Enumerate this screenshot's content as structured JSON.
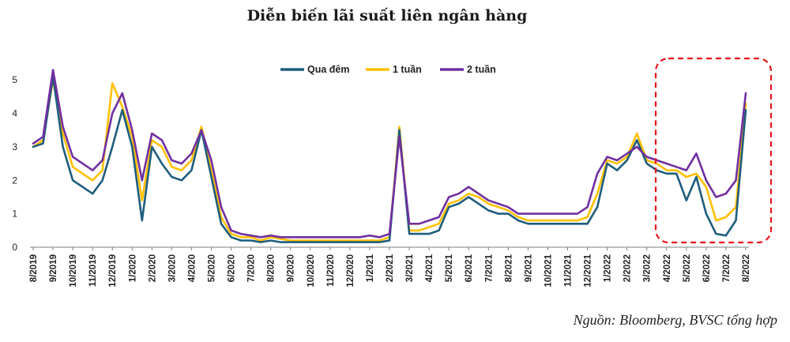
{
  "title": "Diễn biến lãi suất liên ngân hàng",
  "source": "Nguồn: Bloomberg, BVSC tổng hợp",
  "colors": {
    "qua_dem": "#1f5d7d",
    "tuan1": "#ffc000",
    "tuan2": "#7030a0",
    "highlight": "#e8141e",
    "axis": "#7f7f7f"
  },
  "chart_data": {
    "type": "line",
    "title": "Diễn biến lãi suất liên ngân hàng",
    "xlabel": "",
    "ylabel": "",
    "ylim": [
      0,
      5.5
    ],
    "yticks": [
      "0",
      "1",
      "2",
      "3",
      "4",
      "5"
    ],
    "xticks": [
      "8/2019",
      "9/2019",
      "10/2019",
      "11/2019",
      "12/2019",
      "1/2020",
      "2/2020",
      "3/2020",
      "4/2020",
      "5/2020",
      "6/2020",
      "7/2020",
      "8/2020",
      "9/2020",
      "10/2020",
      "11/2020",
      "12/2020",
      "1/2021",
      "2/2021",
      "3/2021",
      "4/2021",
      "5/2021",
      "6/2021",
      "7/2021",
      "8/2021",
      "9/2021",
      "10/2021",
      "11/2021",
      "12/2021",
      "1/2022",
      "2/2022",
      "3/2022",
      "4/2022",
      "5/2022",
      "6/2022",
      "7/2022",
      "8/2022"
    ],
    "legend_position": "top-center",
    "highlight_region": {
      "from": "4/2022",
      "to": "8/2022",
      "style": "dashed-red-rounded"
    },
    "x": [
      "8/2019",
      "8/2019",
      "9/2019",
      "9/2019",
      "10/2019",
      "10/2019",
      "11/2019",
      "11/2019",
      "12/2019",
      "12/2019",
      "1/2020",
      "1/2020",
      "2/2020",
      "2/2020",
      "3/2020",
      "3/2020",
      "4/2020",
      "4/2020",
      "5/2020",
      "5/2020",
      "6/2020",
      "6/2020",
      "7/2020",
      "7/2020",
      "8/2020",
      "8/2020",
      "9/2020",
      "9/2020",
      "10/2020",
      "10/2020",
      "11/2020",
      "11/2020",
      "12/2020",
      "12/2020",
      "1/2021",
      "1/2021",
      "2/2021",
      "2/2021",
      "3/2021",
      "3/2021",
      "4/2021",
      "4/2021",
      "5/2021",
      "5/2021",
      "6/2021",
      "6/2021",
      "7/2021",
      "7/2021",
      "8/2021",
      "8/2021",
      "9/2021",
      "9/2021",
      "10/2021",
      "10/2021",
      "11/2021",
      "11/2021",
      "12/2021",
      "12/2021",
      "1/2022",
      "1/2022",
      "2/2022",
      "2/2022",
      "3/2022",
      "3/2022",
      "4/2022",
      "4/2022",
      "5/2022",
      "5/2022",
      "6/2022",
      "6/2022",
      "7/2022",
      "7/2022",
      "8/2022"
    ],
    "series": [
      {
        "name": "Qua đêm",
        "values": [
          3.0,
          3.1,
          5.1,
          3.0,
          2.0,
          1.8,
          1.6,
          2.0,
          3.0,
          4.1,
          3.0,
          0.8,
          3.0,
          2.5,
          2.1,
          2.0,
          2.3,
          3.5,
          2.1,
          0.7,
          0.3,
          0.2,
          0.2,
          0.15,
          0.2,
          0.15,
          0.15,
          0.15,
          0.15,
          0.15,
          0.15,
          0.15,
          0.15,
          0.15,
          0.15,
          0.15,
          0.2,
          3.5,
          0.4,
          0.4,
          0.4,
          0.5,
          1.2,
          1.3,
          1.5,
          1.3,
          1.1,
          1.0,
          1.0,
          0.8,
          0.7,
          0.7,
          0.7,
          0.7,
          0.7,
          0.7,
          0.7,
          1.2,
          2.5,
          2.3,
          2.6,
          3.2,
          2.5,
          2.3,
          2.2,
          2.2,
          1.4,
          2.1,
          1.0,
          0.4,
          0.35,
          0.8,
          4.1
        ]
      },
      {
        "name": "1 tuần",
        "values": [
          3.0,
          3.2,
          5.0,
          3.4,
          2.4,
          2.2,
          2.0,
          2.3,
          4.9,
          4.2,
          3.3,
          1.4,
          3.2,
          3.0,
          2.4,
          2.3,
          2.6,
          3.6,
          2.3,
          0.9,
          0.4,
          0.3,
          0.3,
          0.2,
          0.3,
          0.25,
          0.2,
          0.2,
          0.2,
          0.2,
          0.2,
          0.2,
          0.2,
          0.2,
          0.2,
          0.2,
          0.3,
          3.6,
          0.5,
          0.5,
          0.6,
          0.7,
          1.3,
          1.4,
          1.6,
          1.5,
          1.3,
          1.2,
          1.1,
          0.9,
          0.8,
          0.8,
          0.8,
          0.8,
          0.8,
          0.8,
          0.9,
          1.6,
          2.6,
          2.5,
          2.7,
          3.4,
          2.6,
          2.5,
          2.3,
          2.3,
          2.1,
          2.2,
          1.8,
          0.8,
          0.9,
          1.2,
          4.3
        ]
      },
      {
        "name": "2 tuần",
        "values": [
          3.1,
          3.3,
          5.3,
          3.6,
          2.7,
          2.5,
          2.3,
          2.6,
          4.0,
          4.6,
          3.5,
          2.0,
          3.4,
          3.2,
          2.6,
          2.5,
          2.8,
          3.5,
          2.6,
          1.2,
          0.5,
          0.4,
          0.35,
          0.3,
          0.35,
          0.3,
          0.3,
          0.3,
          0.3,
          0.3,
          0.3,
          0.3,
          0.3,
          0.3,
          0.35,
          0.3,
          0.4,
          3.3,
          0.7,
          0.7,
          0.8,
          0.9,
          1.5,
          1.6,
          1.8,
          1.6,
          1.4,
          1.3,
          1.2,
          1.0,
          1.0,
          1.0,
          1.0,
          1.0,
          1.0,
          1.0,
          1.2,
          2.2,
          2.7,
          2.6,
          2.8,
          3.0,
          2.7,
          2.6,
          2.5,
          2.4,
          2.3,
          2.8,
          2.0,
          1.5,
          1.6,
          2.0,
          4.6
        ]
      }
    ]
  }
}
